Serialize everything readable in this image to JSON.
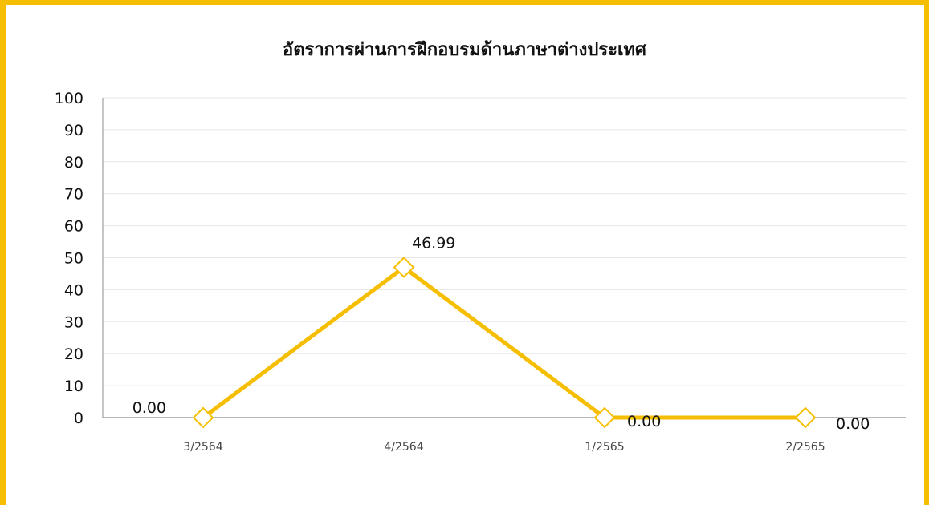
{
  "colors": {
    "accent": "#f5be00",
    "grid": "#e6e6e6",
    "axis": "#8c8c8c",
    "marker_fill": "#ffffff"
  },
  "chart_data": {
    "type": "line",
    "title": "อัตราการผ่านการฝึกอบรมด้านภาษาต่างประเทศ",
    "xlabel": "",
    "ylabel": "",
    "categories": [
      "3/2564",
      "4/2564",
      "1/2565",
      "2/2565"
    ],
    "series": [
      {
        "values": [
          0.0,
          46.99,
          0.0,
          0.0
        ],
        "labels": [
          "0.00",
          "46.99",
          "0.00",
          "0.00"
        ],
        "color": "#f5be00",
        "marker": "diamond-open"
      }
    ],
    "ylim": [
      0,
      100
    ],
    "yticks": [
      "0",
      "10",
      "20",
      "30",
      "40",
      "50",
      "60",
      "70",
      "80",
      "90",
      "100"
    ],
    "grid": true,
    "legend": "none"
  }
}
